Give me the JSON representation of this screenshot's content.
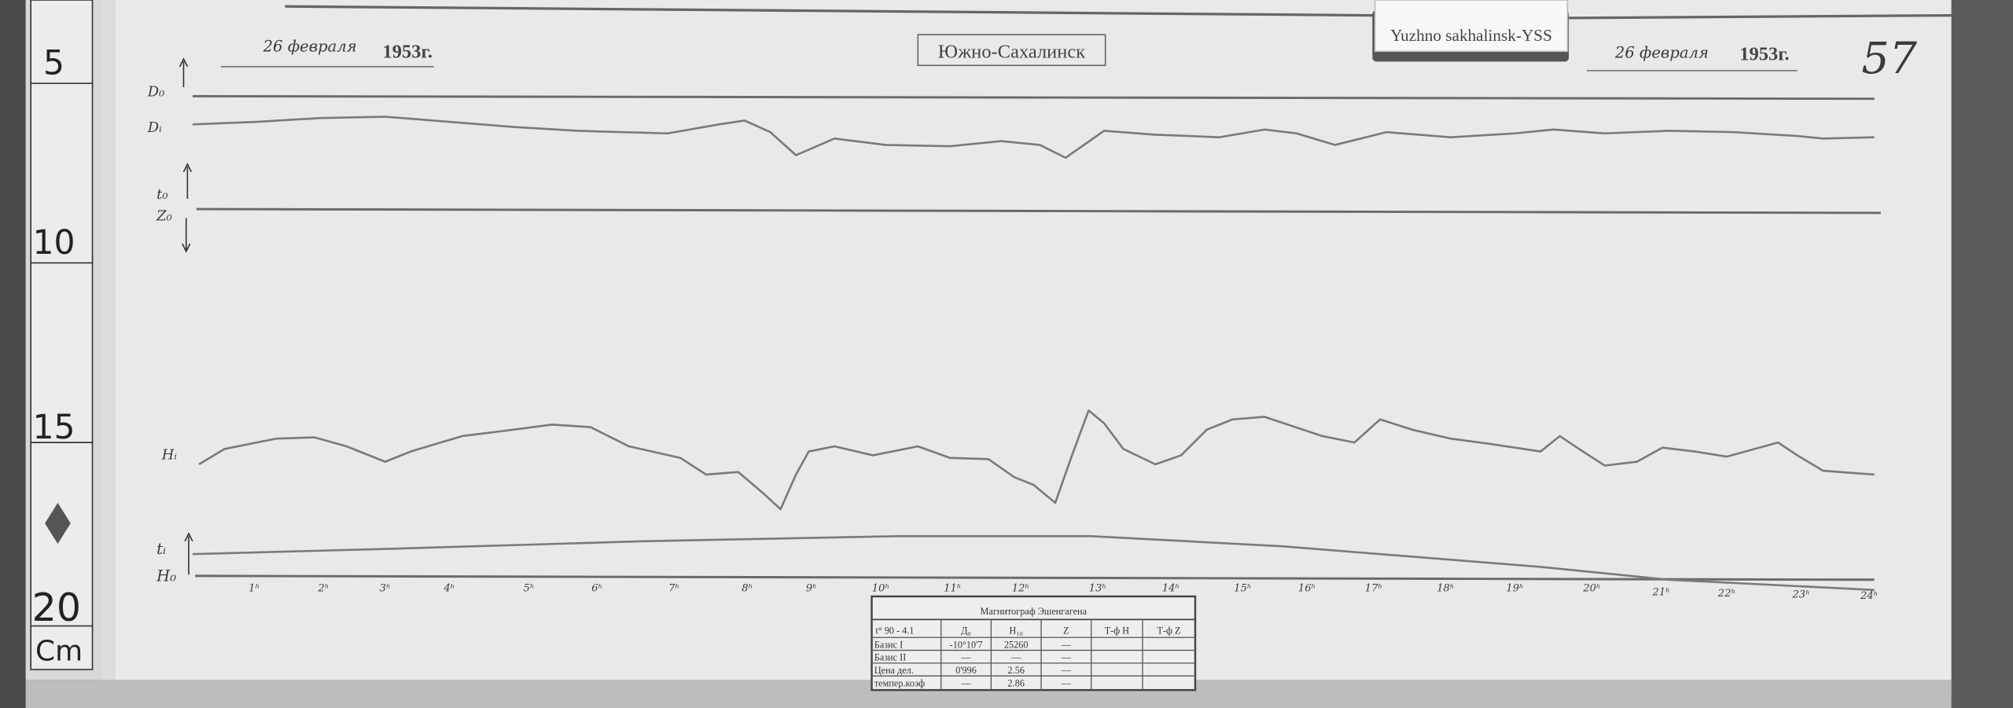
{
  "header": {
    "date_left": "26 февраля",
    "year_left": "1953г.",
    "station": "Южно-Сахалинск",
    "tag_label": "Yuzhno sakhalinsk-YSS",
    "date_right": "26 февраля",
    "year_right": "1953г.",
    "sheet_number": "57"
  },
  "ruler": {
    "marks": [
      "5",
      "10",
      "15",
      "20"
    ],
    "unit": "Cm"
  },
  "trace_labels": {
    "d0": "D₀",
    "di": "Dᵢ",
    "t0": "t₀",
    "z0": "Z₀",
    "hi": "Hᵢ",
    "ti": "tᵢ",
    "h0": "H₀"
  },
  "hours": [
    "1ʰ",
    "2ʰ",
    "3ʰ",
    "4ʰ",
    "5ʰ",
    "6ʰ",
    "7ʰ",
    "8ʰ",
    "9ʰ",
    "10ʰ",
    "11ʰ",
    "12ʰ",
    "13ʰ",
    "14ʰ",
    "15ʰ",
    "16ʰ",
    "17ʰ",
    "18ʰ",
    "19ʰ",
    "20ʰ",
    "21ʰ",
    "22ʰ",
    "23ʰ",
    "24ʰ"
  ],
  "table": {
    "title": "Магнитограф Эшенгагена",
    "corner": "t° 90 - 4.1",
    "columns": [
      "Д₀",
      "H₁₀",
      "Z",
      "Т-ф H",
      "Т-ф Z"
    ],
    "rows": [
      {
        "label": "Базис I",
        "values": [
          "-10°10'7",
          "25260",
          "—",
          "",
          ""
        ]
      },
      {
        "label": "Базис II",
        "values": [
          "—",
          "—",
          "—",
          "",
          ""
        ]
      },
      {
        "label": "Цена дел.",
        "values": [
          "0'996",
          "2.56",
          "—",
          "",
          ""
        ]
      },
      {
        "label": "темпер.коэф",
        "values": [
          "—",
          "2.86",
          "—",
          "",
          ""
        ]
      }
    ]
  }
}
